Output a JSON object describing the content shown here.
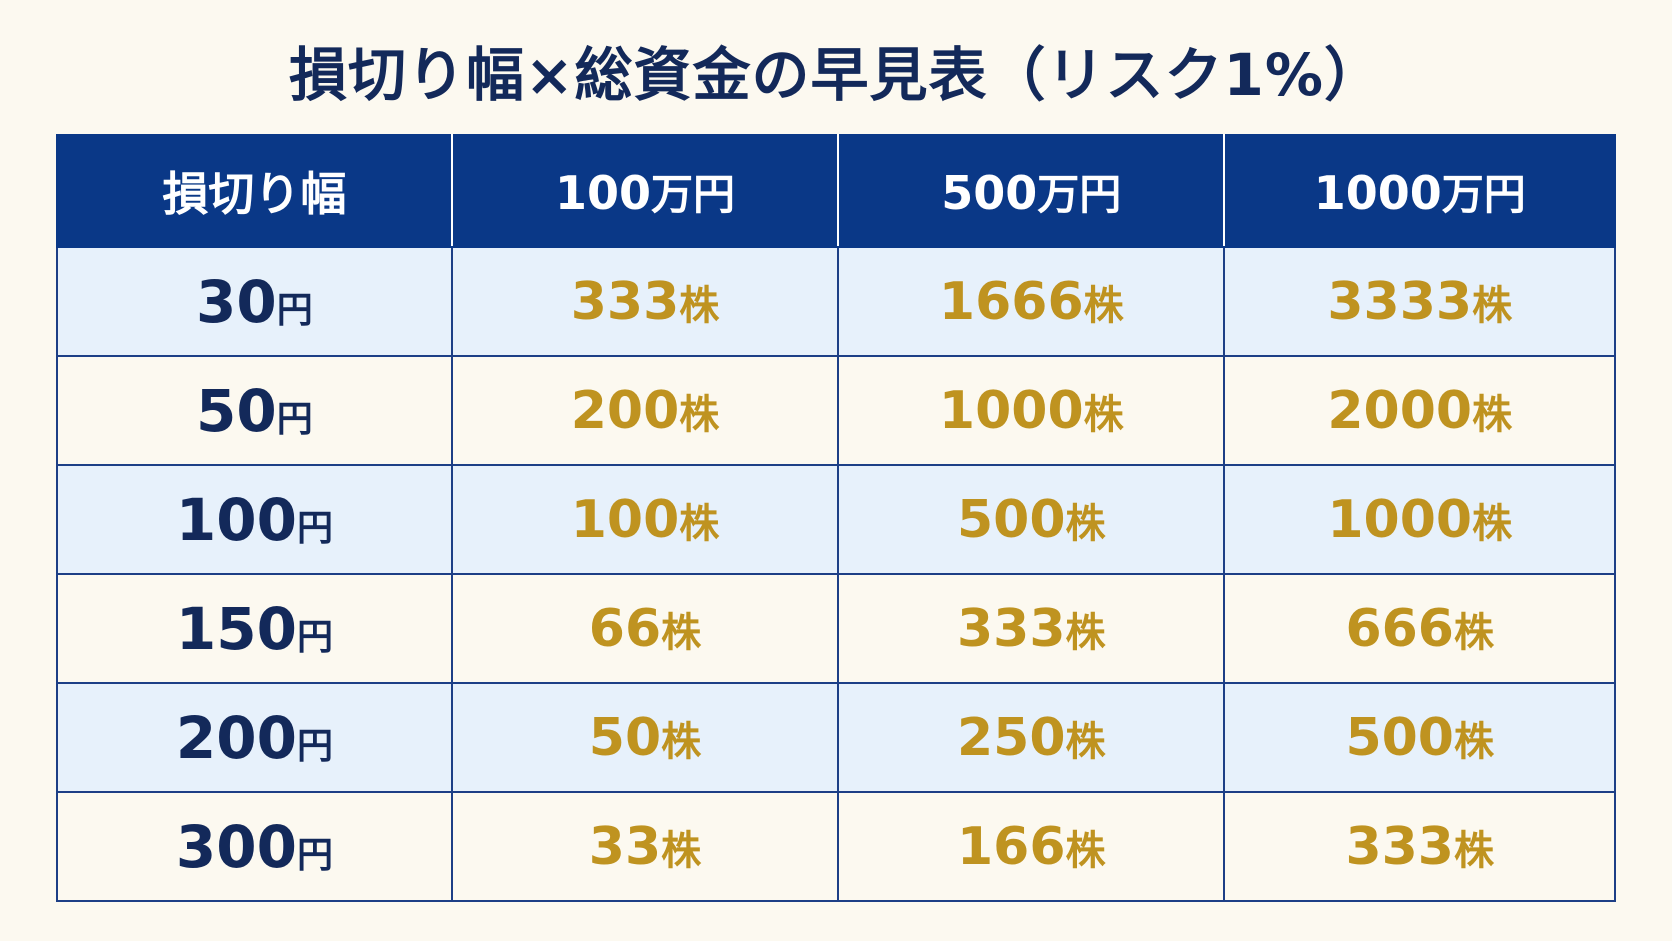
{
  "title": "損切り幅×総資金の早見表（リスク1%）",
  "table": {
    "headers": [
      {
        "value": "損切り幅",
        "unit": ""
      },
      {
        "value": "100",
        "unit": "万円"
      },
      {
        "value": "500",
        "unit": "万円"
      },
      {
        "value": "1000",
        "unit": "万円"
      }
    ],
    "rows": [
      {
        "stop": "30",
        "stop_unit": "円",
        "shares": [
          {
            "value": "333",
            "unit": "株"
          },
          {
            "value": "1666",
            "unit": "株"
          },
          {
            "value": "3333",
            "unit": "株"
          }
        ]
      },
      {
        "stop": "50",
        "stop_unit": "円",
        "shares": [
          {
            "value": "200",
            "unit": "株"
          },
          {
            "value": "1000",
            "unit": "株"
          },
          {
            "value": "2000",
            "unit": "株"
          }
        ]
      },
      {
        "stop": "100",
        "stop_unit": "円",
        "shares": [
          {
            "value": "100",
            "unit": "株"
          },
          {
            "value": "500",
            "unit": "株"
          },
          {
            "value": "1000",
            "unit": "株"
          }
        ]
      },
      {
        "stop": "150",
        "stop_unit": "円",
        "shares": [
          {
            "value": "66",
            "unit": "株"
          },
          {
            "value": "333",
            "unit": "株"
          },
          {
            "value": "666",
            "unit": "株"
          }
        ]
      },
      {
        "stop": "200",
        "stop_unit": "円",
        "shares": [
          {
            "value": "50",
            "unit": "株"
          },
          {
            "value": "250",
            "unit": "株"
          },
          {
            "value": "500",
            "unit": "株"
          }
        ]
      },
      {
        "stop": "300",
        "stop_unit": "円",
        "shares": [
          {
            "value": "33",
            "unit": "株"
          },
          {
            "value": "166",
            "unit": "株"
          },
          {
            "value": "333",
            "unit": "株"
          }
        ]
      }
    ]
  },
  "colors": {
    "header_bg": "#0a3887",
    "title_text": "#13295a",
    "share_text": "#bf9320",
    "row_alt_bg": "#e7f1fb",
    "page_bg": "#fcf9f0"
  }
}
